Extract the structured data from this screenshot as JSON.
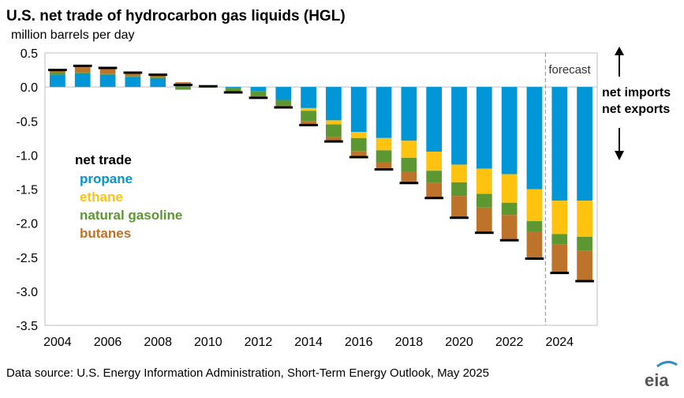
{
  "chart_data": {
    "type": "bar",
    "stacked": true,
    "title": "U.S. net trade of hydrocarbon gas liquids (HGL)",
    "subtitle": "million  barrels per day",
    "ylim": [
      -3.5,
      0.5
    ],
    "yticks": [
      "0.5",
      "0.0",
      "-0.5",
      "-1.0",
      "-1.5",
      "-2.0",
      "-2.5",
      "-3.0",
      "-3.5"
    ],
    "ytick_values": [
      0.5,
      0.0,
      -0.5,
      -1.0,
      -1.5,
      -2.0,
      -2.5,
      -3.0,
      -3.5
    ],
    "xtick_labels": [
      "2004",
      "2006",
      "2008",
      "2010",
      "2012",
      "2014",
      "2016",
      "2018",
      "2020",
      "2022",
      "2024"
    ],
    "categories": [
      2004,
      2005,
      2006,
      2007,
      2008,
      2009,
      2010,
      2011,
      2012,
      2013,
      2014,
      2015,
      2016,
      2017,
      2018,
      2019,
      2020,
      2021,
      2022,
      2023,
      2024,
      2025
    ],
    "forecast_start": 2024,
    "forecast_label": "forecast",
    "legend_title": "net trade",
    "series": [
      {
        "name": "propane",
        "color": "#0096d7",
        "values": [
          0.18,
          0.2,
          0.18,
          0.15,
          0.13,
          0.05,
          0.01,
          -0.02,
          -0.06,
          -0.19,
          -0.31,
          -0.49,
          -0.66,
          -0.75,
          -0.79,
          -0.95,
          -1.14,
          -1.2,
          -1.28,
          -1.5,
          -1.67,
          -1.67
        ]
      },
      {
        "name": "ethane",
        "color": "#ffc20e",
        "values": [
          0,
          0,
          0,
          0,
          0,
          0,
          0,
          0,
          0,
          0,
          -0.04,
          -0.06,
          -0.09,
          -0.18,
          -0.25,
          -0.28,
          -0.26,
          -0.37,
          -0.42,
          -0.47,
          -0.49,
          -0.53
        ]
      },
      {
        "name": "natural gasoline",
        "color": "#5d9732",
        "values": [
          0.03,
          0.02,
          0.01,
          0.01,
          0.01,
          -0.04,
          -0.01,
          -0.05,
          -0.08,
          -0.08,
          -0.15,
          -0.18,
          -0.19,
          -0.17,
          -0.21,
          -0.18,
          -0.2,
          -0.2,
          -0.18,
          -0.15,
          -0.15,
          -0.2
        ]
      },
      {
        "name": "butanes",
        "color": "#bd732a",
        "values": [
          0.04,
          0.09,
          0.09,
          0.05,
          0.04,
          0.02,
          0.01,
          -0.01,
          -0.02,
          -0.03,
          -0.06,
          -0.07,
          -0.09,
          -0.11,
          -0.16,
          -0.22,
          -0.32,
          -0.37,
          -0.37,
          -0.4,
          -0.42,
          -0.45
        ]
      }
    ],
    "net_total": [
      0.25,
      0.31,
      0.28,
      0.21,
      0.18,
      0.03,
      0.01,
      -0.08,
      -0.16,
      -0.3,
      -0.56,
      -0.8,
      -1.03,
      -1.21,
      -1.41,
      -1.63,
      -1.92,
      -2.14,
      -2.25,
      -2.52,
      -2.73,
      -2.85
    ]
  },
  "labels": {
    "source": "Data source: U.S. Energy Information Administration,  Short-Term Energy Outlook, May 2025",
    "net_imports": "net imports",
    "net_exports": "net exports",
    "logo": "eia"
  }
}
